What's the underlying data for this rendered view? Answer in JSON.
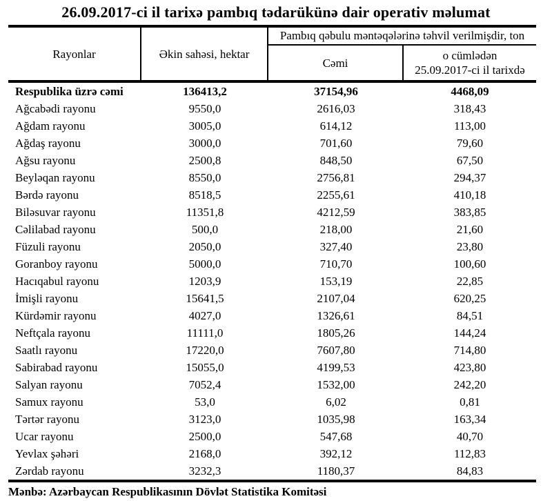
{
  "title": "26.09.2017-ci il tarixə pambıq tədarükünə dair operativ məlumat",
  "colors": {
    "text": "#000000",
    "background": "#ffffff",
    "border": "#000000"
  },
  "table": {
    "columns": {
      "rayonlar": "Rayonlar",
      "ekin_sahesi": "Əkin sahəsi, hektar",
      "group_header": "Pambıq qəbulu məntəqələrinə təhvil verilmişdir, ton",
      "cemi": "Cəmi",
      "tarix_line1": "o cümlədən",
      "tarix_line2": "25.09.2017-ci il tarixdə"
    },
    "total_row": {
      "name": "Respublika üzrə cəmi",
      "ekin": "136413,2",
      "cemi": "37154,96",
      "tarix": "4468,09"
    },
    "rows": [
      {
        "name": "Ağcabədi rayonu",
        "ekin": "9550,0",
        "cemi": "2616,03",
        "tarix": "318,43"
      },
      {
        "name": "Ağdam rayonu",
        "ekin": "3005,0",
        "cemi": "614,12",
        "tarix": "113,00"
      },
      {
        "name": "Ağdaş rayonu",
        "ekin": "3000,0",
        "cemi": "701,60",
        "tarix": "79,60"
      },
      {
        "name": "Ağsu rayonu",
        "ekin": "2500,8",
        "cemi": "848,50",
        "tarix": "67,50"
      },
      {
        "name": "Beyləqan rayonu",
        "ekin": "8550,0",
        "cemi": "2756,81",
        "tarix": "294,37"
      },
      {
        "name": "Bərdə rayonu",
        "ekin": "8518,5",
        "cemi": "2255,61",
        "tarix": "410,18"
      },
      {
        "name": "Biləsuvar rayonu",
        "ekin": "11351,8",
        "cemi": "4212,59",
        "tarix": "383,85"
      },
      {
        "name": "Cəlilabad rayonu",
        "ekin": "500,0",
        "cemi": "218,00",
        "tarix": "21,60"
      },
      {
        "name": "Füzuli rayonu",
        "ekin": "2050,0",
        "cemi": "327,40",
        "tarix": "23,80"
      },
      {
        "name": "Goranboy rayonu",
        "ekin": "5000,0",
        "cemi": "710,70",
        "tarix": "100,60"
      },
      {
        "name": "Hacıqabul rayonu",
        "ekin": "1203,9",
        "cemi": "153,19",
        "tarix": "22,85"
      },
      {
        "name": "İmişli rayonu",
        "ekin": "15641,5",
        "cemi": "2107,04",
        "tarix": "620,25"
      },
      {
        "name": "Kürdəmir rayonu",
        "ekin": "4027,0",
        "cemi": "1326,61",
        "tarix": "84,51"
      },
      {
        "name": "Neftçala rayonu",
        "ekin": "11111,0",
        "cemi": "1805,26",
        "tarix": "144,24"
      },
      {
        "name": "Saatlı rayonu",
        "ekin": "17220,0",
        "cemi": "7607,80",
        "tarix": "714,80"
      },
      {
        "name": "Sabirabad rayonu",
        "ekin": "15055,0",
        "cemi": "4199,53",
        "tarix": "423,80"
      },
      {
        "name": "Salyan rayonu",
        "ekin": "7052,4",
        "cemi": "1532,00",
        "tarix": "242,20"
      },
      {
        "name": "Samux rayonu",
        "ekin": "53,0",
        "cemi": "6,02",
        "tarix": "0,81"
      },
      {
        "name": "Tərtər rayonu",
        "ekin": "3123,0",
        "cemi": "1035,98",
        "tarix": "163,34"
      },
      {
        "name": "Ucar rayonu",
        "ekin": "2500,0",
        "cemi": "547,68",
        "tarix": "40,70"
      },
      {
        "name": "Yevlax şəhəri",
        "ekin": "2168,0",
        "cemi": "392,12",
        "tarix": "112,83"
      },
      {
        "name": "Zərdab rayonu",
        "ekin": "3232,3",
        "cemi": "1180,37",
        "tarix": "84,83"
      }
    ]
  },
  "footer": "Mənbə: Azərbaycan Respublikasının Dövlət Statistika Komitəsi"
}
